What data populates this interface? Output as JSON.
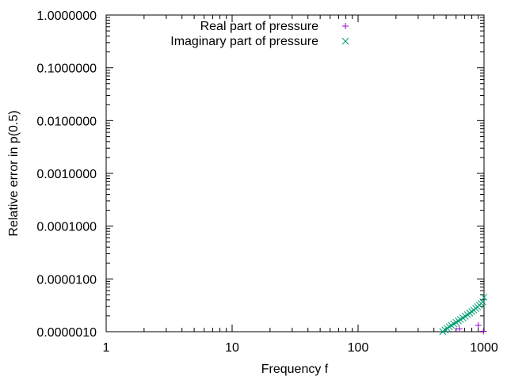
{
  "chart_data": {
    "type": "scatter",
    "title": "",
    "xlabel": "Frequency f",
    "ylabel": "Relative error in p(0.5)",
    "xscale": "log",
    "yscale": "log",
    "xlim": [
      1,
      1000
    ],
    "ylim": [
      1e-06,
      1
    ],
    "xticks": [
      {
        "value": 1,
        "label": "1"
      },
      {
        "value": 10,
        "label": "10"
      },
      {
        "value": 100,
        "label": "100"
      },
      {
        "value": 1000,
        "label": "1000"
      }
    ],
    "yticks": [
      {
        "value": 1e-06,
        "label": "0.0000010"
      },
      {
        "value": 1e-05,
        "label": "0.0000100"
      },
      {
        "value": 0.0001,
        "label": "0.0001000"
      },
      {
        "value": 0.001,
        "label": "0.0010000"
      },
      {
        "value": 0.01,
        "label": "0.0100000"
      },
      {
        "value": 0.1,
        "label": "0.1000000"
      },
      {
        "value": 1,
        "label": "1.0000000"
      }
    ],
    "grid": false,
    "legend_position": "top-right",
    "series": [
      {
        "name": "Real part of pressure",
        "marker": "plus",
        "color": "#9400d3",
        "x": [
          637,
          900,
          990
        ],
        "y": [
          1.13e-06,
          1.32e-06,
          1.02e-06
        ]
      },
      {
        "name": "Imaginary part of pressure",
        "marker": "cross",
        "color": "#009e73",
        "x": [
          470,
          490,
          510,
          530,
          550,
          575,
          600,
          625,
          650,
          680,
          710,
          740,
          770,
          800,
          830,
          860,
          890,
          920,
          950,
          980,
          1000
        ],
        "y": [
          1.01e-06,
          1.08e-06,
          1.16e-06,
          1.24e-06,
          1.32e-06,
          1.41e-06,
          1.5e-06,
          1.6e-06,
          1.71e-06,
          1.83e-06,
          1.96e-06,
          2.1e-06,
          2.25e-06,
          2.4e-06,
          2.57e-06,
          2.76e-06,
          2.96e-06,
          3.18e-06,
          3.42e-06,
          3.68e-06,
          4.5e-06
        ]
      }
    ]
  }
}
